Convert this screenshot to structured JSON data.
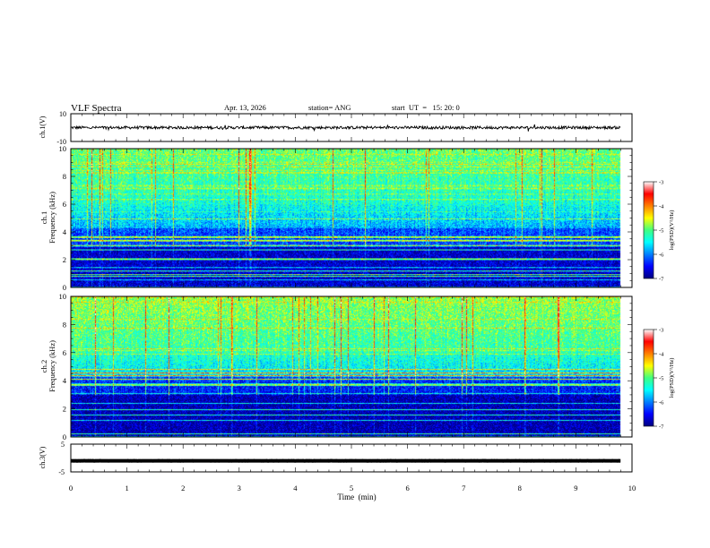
{
  "header": {
    "title": "VLF Spectra",
    "date": "Apr. 13, 2026",
    "station": "station= ANG",
    "start": "start  UT  =   15: 20: 0"
  },
  "chart_data": [
    {
      "id": "ch1-waveform",
      "type": "line",
      "ylabel": "ch.1(V)",
      "ylim": [
        -10,
        10
      ],
      "y_ticks": [
        "10",
        "-10"
      ],
      "baseline": 0,
      "amplitude": 1,
      "xlim": [
        0,
        10
      ],
      "data_end_min": 9.8
    },
    {
      "id": "ch1-spectrogram",
      "type": "heatmap",
      "ylabel": "ch.1\nFrequency  (kHz)",
      "ylim": [
        0,
        10
      ],
      "y_ticks": [
        "0",
        "2",
        "4",
        "6",
        "8",
        "10"
      ],
      "xlim": [
        0,
        10
      ],
      "data_end_min": 9.8,
      "colorbar": {
        "label": "log(PSD)(V²/Hz)",
        "range": [
          -7,
          -3
        ],
        "ticks": [
          "-3",
          "-4",
          "-5",
          "-6",
          "-7"
        ]
      }
    },
    {
      "id": "ch2-spectrogram",
      "type": "heatmap",
      "ylabel": "ch.2\nFrequency  (kHz)",
      "ylim": [
        0,
        10
      ],
      "y_ticks": [
        "0",
        "2",
        "4",
        "6",
        "8",
        "10"
      ],
      "xlim": [
        0,
        10
      ],
      "data_end_min": 9.8,
      "colorbar": {
        "label": "log(PSD)(V²/Hz)",
        "range": [
          -7,
          -3
        ],
        "ticks": [
          "-3",
          "-4",
          "-5",
          "-6",
          "-7"
        ]
      }
    },
    {
      "id": "ch3-waveform",
      "type": "line",
      "ylabel": "ch.3(V)",
      "ylim": [
        -5,
        5
      ],
      "y_ticks": [
        "5",
        "0",
        "-5"
      ],
      "baseline": -1,
      "amplitude": 0.2,
      "xlim": [
        0,
        10
      ],
      "data_end_min": 9.8
    }
  ],
  "x_axis": {
    "label": "Time  (min)",
    "ticks": [
      "0",
      "1",
      "2",
      "3",
      "4",
      "5",
      "6",
      "7",
      "8",
      "9",
      "10"
    ]
  }
}
